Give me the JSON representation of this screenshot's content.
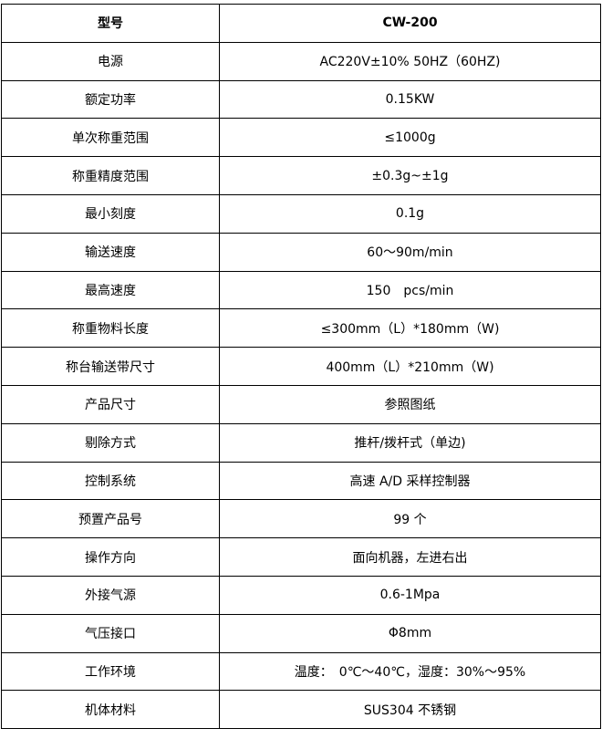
{
  "table": {
    "header": {
      "label": "型号",
      "value": "CW-200"
    },
    "rows": [
      {
        "label": "电源",
        "value": "AC220V±10% 50HZ（60HZ)"
      },
      {
        "label": "额定功率",
        "value": "0.15KW"
      },
      {
        "label": "单次称重范围",
        "value": "≤1000g"
      },
      {
        "label": "称重精度范围",
        "value": "±0.3g~±1g"
      },
      {
        "label": "最小刻度",
        "value": "0.1g"
      },
      {
        "label": "输送速度",
        "value": "60～90m/min"
      },
      {
        "label": "最高速度",
        "value": "150　pcs/min"
      },
      {
        "label": "称重物料长度",
        "value": "≤300mm（L）*180mm（W)"
      },
      {
        "label": "称台输送带尺寸",
        "value": "400mm（L）*210mm（W)"
      },
      {
        "label": "产品尺寸",
        "value": "参照图纸"
      },
      {
        "label": "剔除方式",
        "value": "推杆/拨杆式（单边)"
      },
      {
        "label": "控制系统",
        "value": "高速 A/D 采样控制器"
      },
      {
        "label": "预置产品号",
        "value": "99 个"
      },
      {
        "label": "操作方向",
        "value": "面向机器，左进右出"
      },
      {
        "label": "外接气源",
        "value": "0.6-1Mpa"
      },
      {
        "label": "气压接口",
        "value": "Φ8mm"
      },
      {
        "label": "工作环境",
        "value": "温度：　0℃～40℃，湿度：30%～95%"
      },
      {
        "label": "机体材料",
        "value": "SUS304 不锈钢"
      }
    ]
  }
}
